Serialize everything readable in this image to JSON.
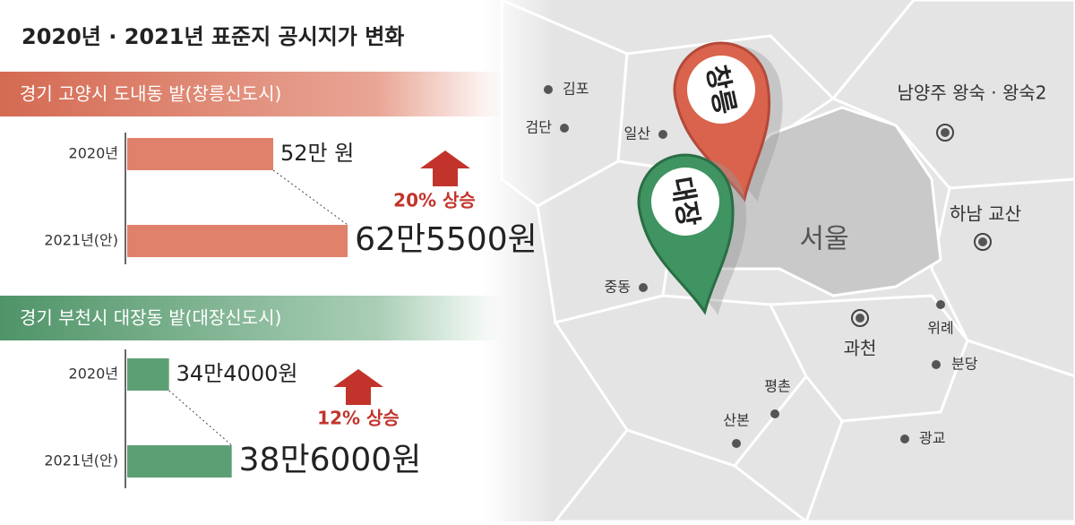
{
  "title": "2020년 · 2021년 표준지 공시지가 변화",
  "chart_data": [
    {
      "type": "bar",
      "orientation": "horizontal",
      "title": "경기 고양시 도내동 밭(창릉신도시)",
      "categories": [
        "2020년",
        "2021년(안)"
      ],
      "values": [
        520000,
        625500
      ],
      "value_labels": [
        "52만 원",
        "62만5500원"
      ],
      "color": "#e0826b",
      "xlim": [
        313000,
        694000
      ],
      "annotation": "20% 상승"
    },
    {
      "type": "bar",
      "orientation": "horizontal",
      "title": "경기 부천시 대장동 밭(대장신도시)",
      "categories": [
        "2020년",
        "2021년(안)"
      ],
      "values": [
        344000,
        386000
      ],
      "value_labels": [
        "34만4000원",
        "38만6000원"
      ],
      "color": "#5d9f74",
      "xlim": [
        316000,
        496000
      ],
      "annotation": "12% 상승"
    }
  ],
  "map": {
    "city": "서울",
    "places": [
      "김포",
      "검단",
      "일산",
      "중동",
      "남양주 왕숙 · 왕숙2",
      "하남 교산",
      "과천",
      "위례",
      "분당",
      "평촌",
      "산본",
      "광교"
    ],
    "pins": [
      "창릉",
      "대장"
    ]
  }
}
